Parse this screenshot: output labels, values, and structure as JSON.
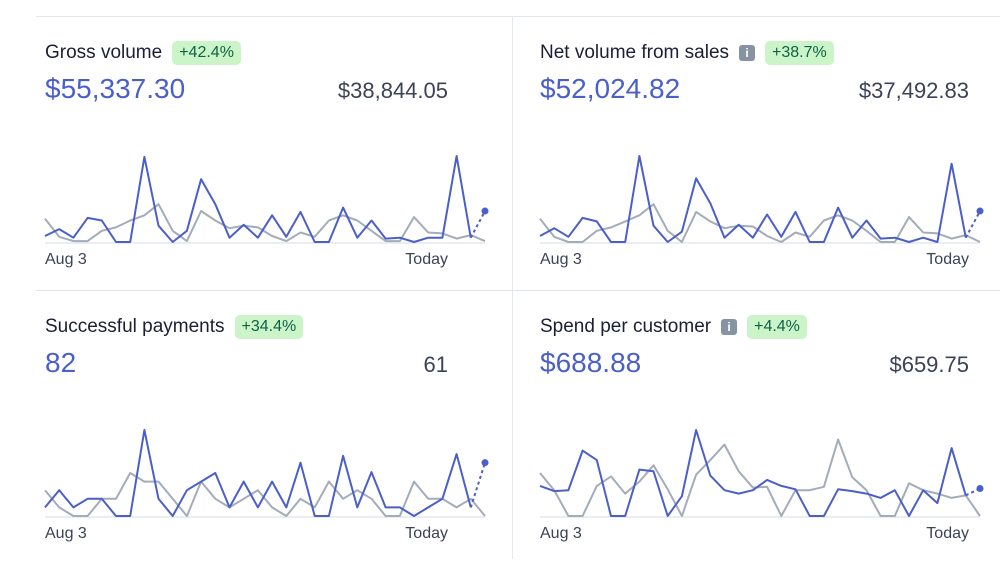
{
  "colors": {
    "current": "#4b5fc8",
    "previous": "#a3acb9",
    "badge_bg": "#cbf4c9",
    "badge_text": "#0e6245"
  },
  "metrics": [
    {
      "title": "Gross volume",
      "info": false,
      "change": "+42.4%",
      "value": "$55,337.30",
      "previous": "$38,844.05",
      "start_label": "Aug 3",
      "end_label": "Today",
      "chart_data": {
        "type": "line",
        "ylim": [
          0,
          100
        ],
        "series": [
          {
            "name": "current",
            "values": [
              7,
              15,
              5,
              28,
              25,
              0,
              0,
              99,
              19,
              0,
              13,
              73,
              44,
              5,
              20,
              5,
              31,
              6,
              35,
              0,
              0,
              40,
              5,
              25,
              4,
              5,
              0,
              5,
              5,
              100,
              5
            ],
            "projected": 36
          },
          {
            "name": "previous",
            "values": [
              27,
              6,
              1,
              1,
              13,
              17,
              25,
              31,
              44,
              13,
              1,
              36,
              25,
              16,
              19,
              17,
              7,
              1,
              11,
              6,
              25,
              31,
              25,
              13,
              1,
              1,
              29,
              11,
              10,
              4,
              8,
              1
            ]
          }
        ]
      }
    },
    {
      "title": "Net volume from sales",
      "info": true,
      "change": "+38.7%",
      "value": "$52,024.82",
      "previous": "$37,492.83",
      "start_label": "Aug 3",
      "end_label": "Today",
      "chart_data": {
        "type": "line",
        "ylim": [
          0,
          100
        ],
        "series": [
          {
            "name": "current",
            "values": [
              7,
              16,
              6,
              28,
              24,
              0,
              0,
              100,
              19,
              0,
              12,
              74,
              45,
              5,
              20,
              5,
              32,
              6,
              35,
              0,
              0,
              40,
              5,
              25,
              4,
              5,
              0,
              5,
              0,
              91,
              5
            ],
            "projected": 36
          },
          {
            "name": "previous",
            "values": [
              27,
              6,
              0,
              0,
              13,
              17,
              24,
              31,
              44,
              13,
              0,
              35,
              24,
              16,
              19,
              18,
              7,
              0,
              11,
              6,
              25,
              31,
              25,
              13,
              0,
              0,
              29,
              11,
              10,
              4,
              8,
              0
            ]
          }
        ]
      }
    },
    {
      "title": "Successful payments",
      "info": false,
      "change": "+34.4%",
      "value": "82",
      "previous": "61",
      "start_label": "Aug 3",
      "end_label": "Today",
      "chart_data": {
        "type": "line",
        "ylim": [
          0,
          100
        ],
        "series": [
          {
            "name": "current",
            "values": [
              10,
              30,
              10,
              20,
              20,
              0,
              0,
              100,
              20,
              0,
              30,
              40,
              50,
              10,
              40,
              10,
              40,
              10,
              62,
              0,
              0,
              70,
              10,
              51,
              10,
              10,
              0,
              10,
              20,
              72,
              10
            ],
            "projected": 62
          },
          {
            "name": "previous",
            "values": [
              30,
              10,
              0,
              0,
              20,
              20,
              50,
              40,
              40,
              20,
              0,
              40,
              20,
              10,
              20,
              30,
              10,
              0,
              20,
              10,
              40,
              20,
              30,
              20,
              0,
              0,
              40,
              20,
              20,
              10,
              20,
              0
            ]
          }
        ]
      }
    },
    {
      "title": "Spend per customer",
      "info": true,
      "change": "+4.4%",
      "value": "$688.88",
      "previous": "$659.75",
      "start_label": "Aug 3",
      "end_label": "Today",
      "chart_data": {
        "type": "line",
        "ylim": [
          0,
          100
        ],
        "series": [
          {
            "name": "current",
            "values": [
              35,
              29,
              30,
              76,
              65,
              0,
              0,
              54,
              52,
              0,
              23,
              100,
              47,
              30,
              26,
              30,
              42,
              35,
              31,
              0,
              0,
              31,
              29,
              26,
              21,
              30,
              0,
              30,
              15,
              79,
              24
            ],
            "projected": 32
          },
          {
            "name": "previous",
            "values": [
              50,
              30,
              0,
              0,
              35,
              46,
              26,
              40,
              59,
              31,
              0,
              48,
              65,
              83,
              52,
              33,
              34,
              0,
              30,
              30,
              34,
              89,
              45,
              30,
              0,
              0,
              38,
              30,
              26,
              21,
              24,
              0
            ]
          }
        ]
      }
    }
  ]
}
